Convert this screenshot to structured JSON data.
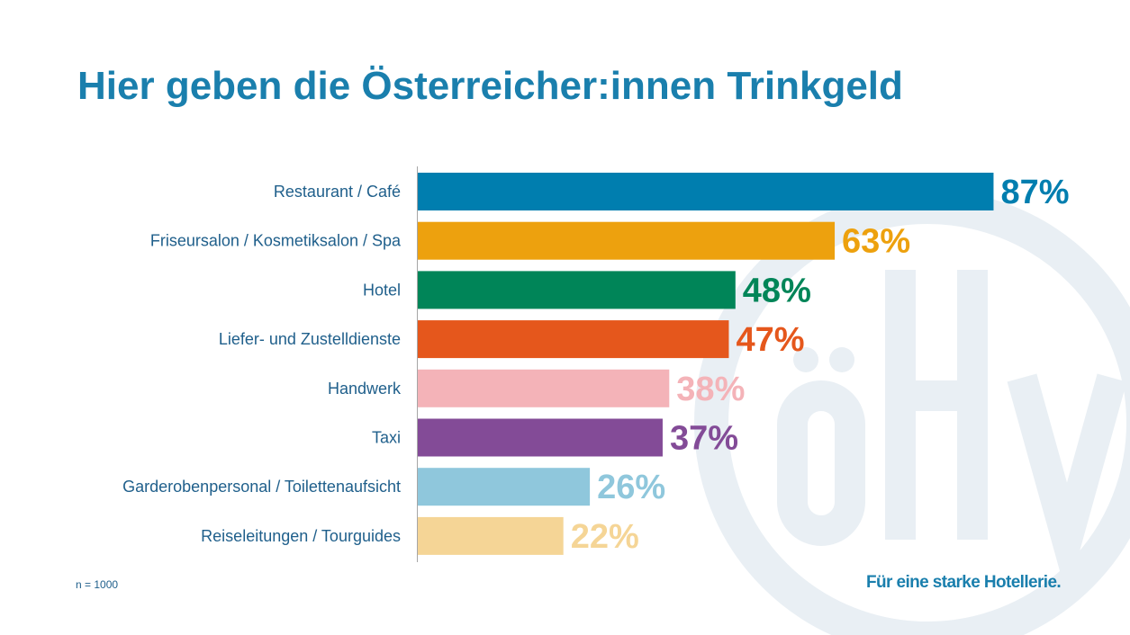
{
  "title": "Hier geben die Österreicher:innen Trinkgeld",
  "footnote": "n = 1000",
  "slogan": "Für eine starke Hotellerie.",
  "watermark_text": "ÖHV",
  "colors": {
    "title": "#1a7fad",
    "label": "#1f5f8b",
    "axis": "#a6a6a6",
    "watermark": "#e9eff4"
  },
  "chart_data": {
    "type": "bar",
    "orientation": "horizontal",
    "title": "Hier geben die Österreicher:innen Trinkgeld",
    "xlabel": "",
    "ylabel": "",
    "xlim": [
      0,
      100
    ],
    "unit": "%",
    "grid": false,
    "categories": [
      "Restaurant / Café",
      "Friseursalon / Kosmetiksalon / Spa",
      "Hotel",
      "Liefer- und Zustelldienste",
      "Handwerk",
      "Taxi",
      "Garderobenpersonal / Toilettenaufsicht",
      "Reiseleitungen / Tourguides"
    ],
    "values": [
      87,
      63,
      48,
      47,
      38,
      37,
      26,
      22
    ],
    "value_labels": [
      "87%",
      "63%",
      "48%",
      "47%",
      "38%",
      "37%",
      "26%",
      "22%"
    ],
    "colors": [
      "#007eaf",
      "#eda10e",
      "#008558",
      "#e5571c",
      "#f4b3b8",
      "#834b97",
      "#8fc7dc",
      "#f5d596"
    ]
  }
}
